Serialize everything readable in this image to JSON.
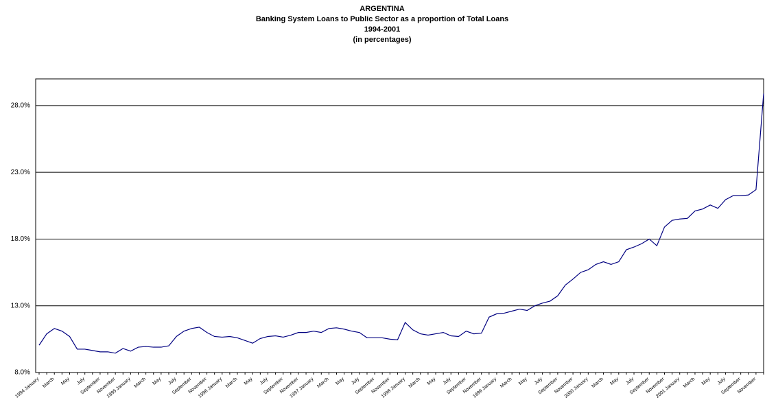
{
  "chart_data": {
    "type": "line",
    "title_lines": [
      "ARGENTINA",
      "Banking System Loans to Public Sector as a proportion of Total Loans",
      "1994-2001",
      "(in percentages)"
    ],
    "categories": [
      "1994 January",
      null,
      "March",
      null,
      "May",
      null,
      "July",
      null,
      "September",
      null,
      "November",
      null,
      "1995 January",
      null,
      "March",
      null,
      "May",
      null,
      "July",
      null,
      "September",
      null,
      "November",
      null,
      "1996 January",
      null,
      "March",
      null,
      "May",
      null,
      "July",
      null,
      "September",
      null,
      "November",
      null,
      "1997 January",
      null,
      "March",
      null,
      "May",
      null,
      "July",
      null,
      "September",
      null,
      "November",
      null,
      "1998 January",
      null,
      "March",
      null,
      "May",
      null,
      "July",
      null,
      "September",
      null,
      "November",
      null,
      "1999 January",
      null,
      "March",
      null,
      "May",
      null,
      "July",
      null,
      "September",
      null,
      "November",
      null,
      "2000 January",
      null,
      "March",
      null,
      "May",
      null,
      "July",
      null,
      "September",
      null,
      "November",
      null,
      "2001 January",
      null,
      "March",
      null,
      "May",
      null,
      "July",
      null,
      "September",
      null,
      "November",
      null
    ],
    "series": [
      {
        "color": "#000080",
        "values": [
          10.05,
          10.9,
          11.3,
          11.1,
          10.7,
          9.75,
          9.75,
          9.65,
          9.55,
          9.55,
          9.45,
          9.8,
          9.6,
          9.9,
          9.95,
          9.9,
          9.9,
          10.0,
          10.7,
          11.1,
          11.3,
          11.4,
          11.0,
          10.7,
          10.65,
          10.7,
          10.6,
          10.4,
          10.2,
          10.55,
          10.7,
          10.75,
          10.65,
          10.8,
          11.0,
          11.0,
          11.1,
          11.0,
          11.3,
          11.35,
          11.25,
          11.1,
          11.0,
          10.6,
          10.6,
          10.6,
          10.5,
          10.45,
          11.75,
          11.2,
          10.9,
          10.8,
          10.9,
          11.0,
          10.75,
          10.7,
          11.1,
          10.9,
          10.95,
          12.15,
          12.4,
          12.45,
          12.6,
          12.75,
          12.65,
          13.0,
          13.2,
          13.35,
          13.75,
          14.55,
          15.0,
          15.5,
          15.7,
          16.1,
          16.3,
          16.1,
          16.3,
          17.2,
          17.4,
          17.65,
          18.0,
          17.5,
          18.9,
          19.4,
          19.5,
          19.55,
          20.1,
          20.25,
          20.55,
          20.3,
          20.95,
          21.25,
          21.25,
          21.3,
          21.7,
          28.9
        ]
      }
    ],
    "ylim": [
      8,
      30
    ],
    "yticks": [
      {
        "value": 8,
        "label": "8.0%"
      },
      {
        "value": 13,
        "label": "13.0%"
      },
      {
        "value": 18,
        "label": "18.0%"
      },
      {
        "value": 23,
        "label": "23.0%"
      },
      {
        "value": 28,
        "label": "28.0%"
      }
    ],
    "grid": true
  }
}
